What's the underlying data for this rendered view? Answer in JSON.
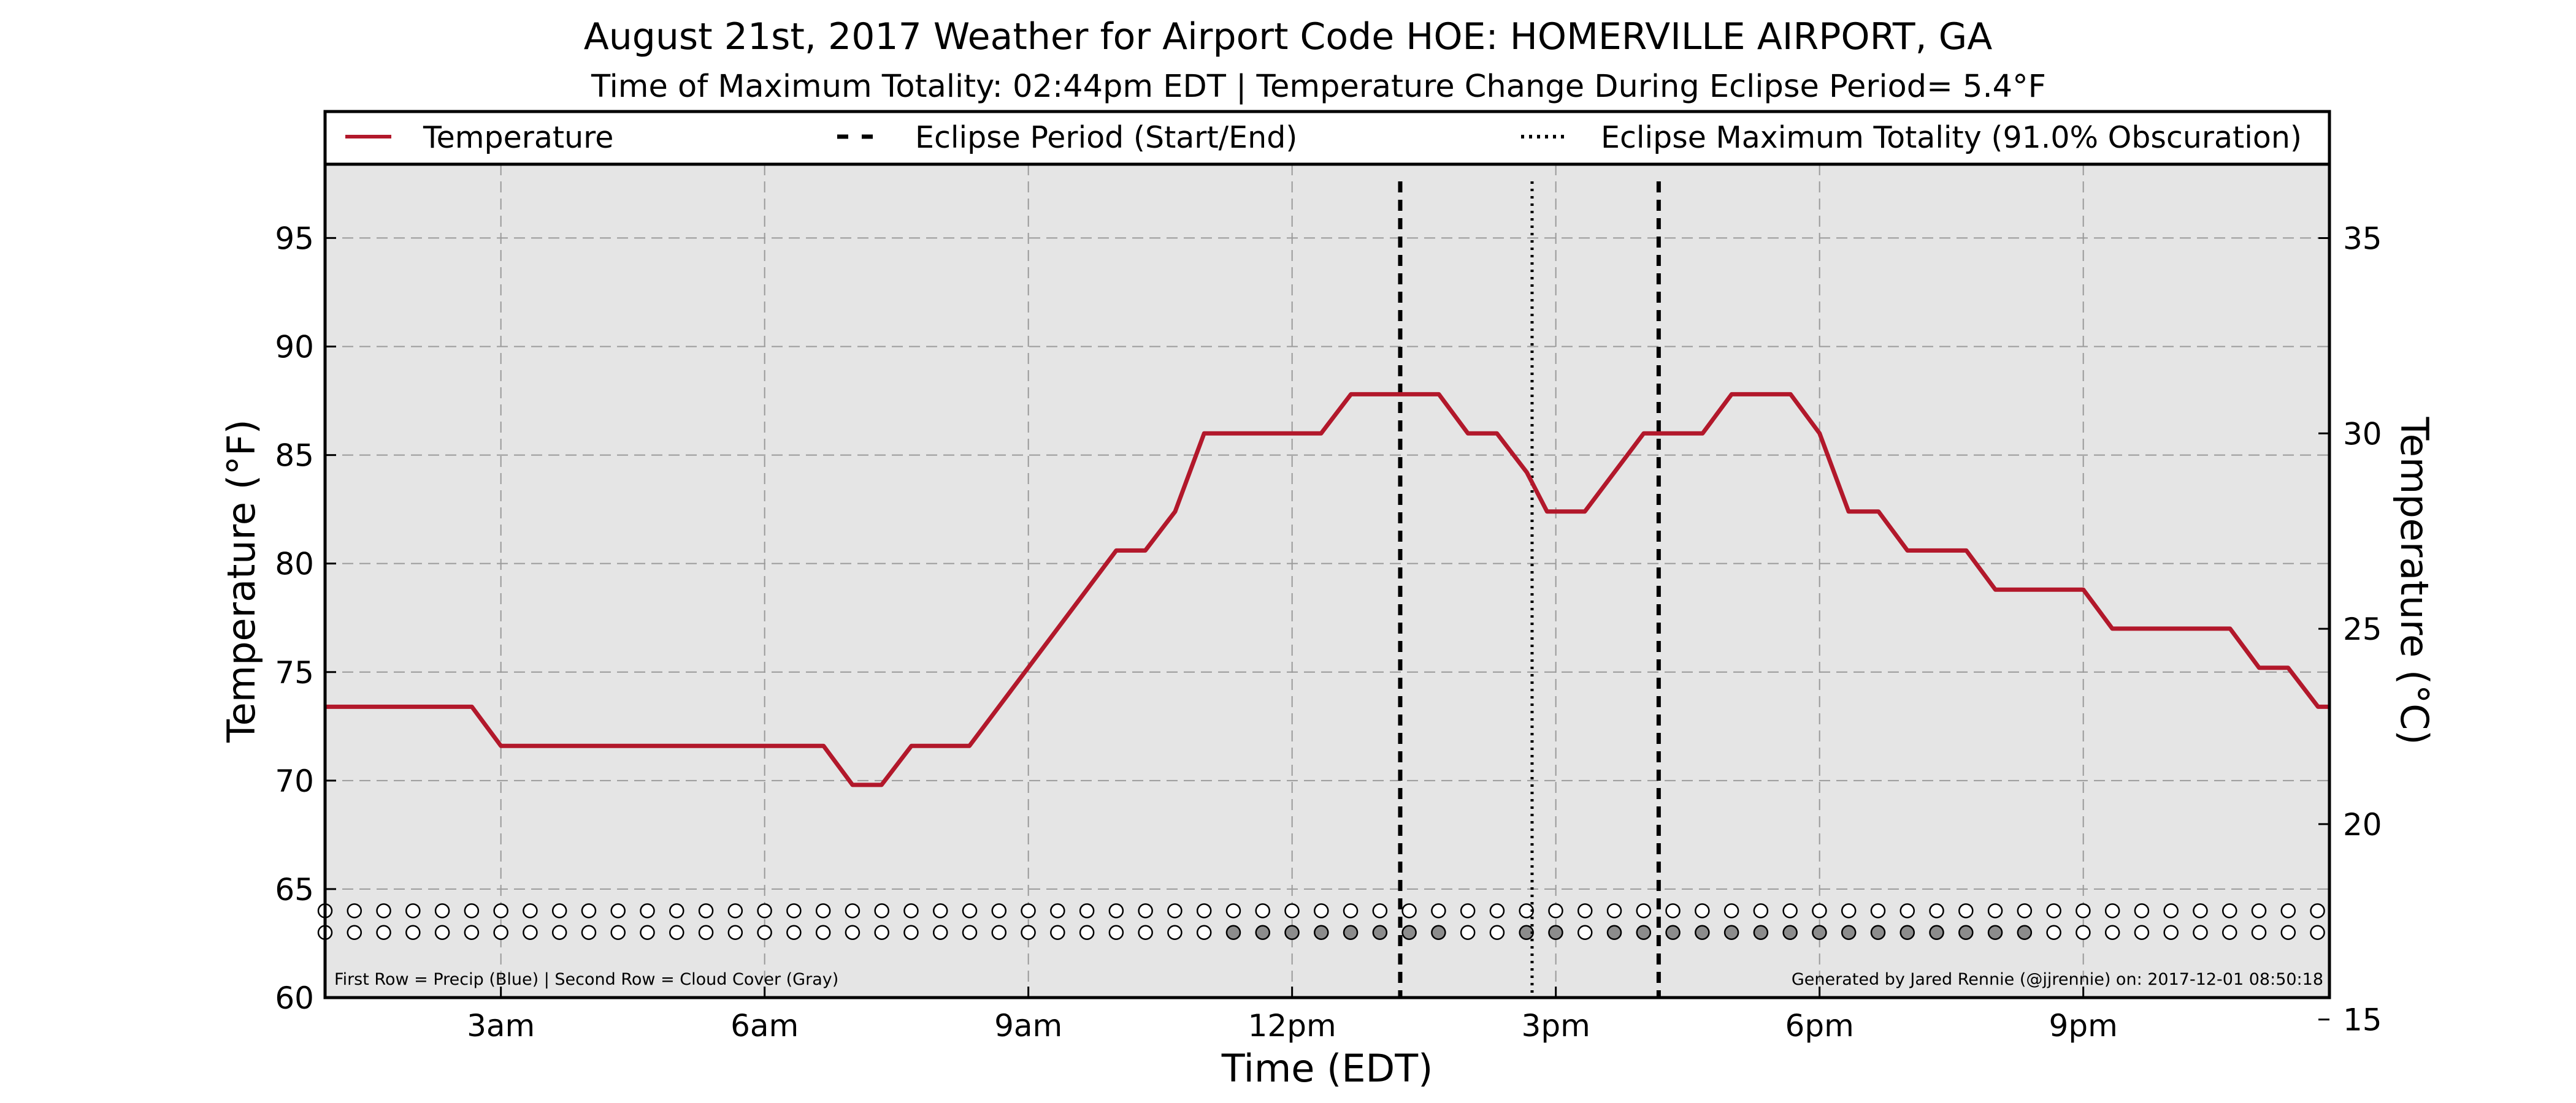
{
  "chart_data": {
    "type": "line",
    "title": "August 21st, 2017 Weather for Airport Code HOE: HOMERVILLE AIRPORT, GA",
    "subtitle": "Time of Maximum Totality: 02:44pm EDT | Temperature Change During Eclipse Period= 5.4°F",
    "xlabel": "Time (EDT)",
    "ylabel": "Temperature (°F)",
    "y2label": "Temperature (°C)",
    "xlim": [
      1.0,
      23.8
    ],
    "ylim": [
      60,
      98.4
    ],
    "y2lim": [
      15.56,
      36.89
    ],
    "x_ticks": [
      {
        "x": 3,
        "label": "3am"
      },
      {
        "x": 6,
        "label": "6am"
      },
      {
        "x": 9,
        "label": "9am"
      },
      {
        "x": 12,
        "label": "12pm"
      },
      {
        "x": 15,
        "label": "3pm"
      },
      {
        "x": 18,
        "label": "6pm"
      },
      {
        "x": 21,
        "label": "9pm"
      }
    ],
    "y_ticks": [
      60,
      65,
      70,
      75,
      80,
      85,
      90,
      95
    ],
    "y2_ticks": [
      15,
      20,
      25,
      30,
      35
    ],
    "grid": true,
    "legend": {
      "placement": "top",
      "entries": [
        {
          "label": "Temperature",
          "style": "solid",
          "color": "#b2182b"
        },
        {
          "label": "Eclipse Period (Start/End)",
          "style": "dashed",
          "color": "#000000"
        },
        {
          "label": "Eclipse Maximum Totality (91.0% Obscuration)",
          "style": "dotted",
          "color": "#000000"
        }
      ]
    },
    "series": [
      {
        "name": "Temperature",
        "color": "#b2182b",
        "x": [
          1.0,
          2.67,
          3.0,
          6.67,
          7.0,
          7.33,
          7.67,
          8.33,
          10.0,
          10.33,
          10.67,
          11.0,
          12.33,
          12.67,
          13.67,
          14.0,
          14.33,
          14.67,
          14.9,
          15.33,
          16.0,
          16.67,
          17.0,
          17.67,
          18.0,
          18.33,
          18.67,
          19.0,
          19.67,
          20.0,
          21.0,
          21.33,
          22.67,
          23.0,
          23.33,
          23.67,
          24.0
        ],
        "values": [
          73.4,
          73.4,
          71.6,
          71.6,
          69.8,
          69.8,
          71.6,
          71.6,
          80.6,
          80.6,
          82.4,
          86.0,
          86.0,
          87.8,
          87.8,
          86.0,
          86.0,
          84.2,
          82.4,
          82.4,
          86.0,
          86.0,
          87.8,
          87.8,
          86.0,
          82.4,
          82.4,
          80.6,
          80.6,
          78.8,
          78.8,
          77.0,
          77.0,
          75.2,
          75.2,
          73.4,
          73.4
        ]
      }
    ],
    "eclipse_start": 13.23,
    "eclipse_end": 16.17,
    "max_totality": 14.73,
    "precip_row": {
      "y": 64.0,
      "x_start": 1.0,
      "x_step": 0.3333,
      "count": 69,
      "filled": []
    },
    "cloud_row": {
      "y": 63.0,
      "x_start": 1.0,
      "x_step": 0.3333,
      "count": 69,
      "filled": [
        31,
        32,
        33,
        34,
        35,
        36,
        37,
        38,
        41,
        42,
        44,
        45,
        46,
        47,
        48,
        49,
        50,
        51,
        52,
        53,
        54,
        55,
        56,
        57,
        58
      ]
    },
    "footnote_left": "First Row = Precip (Blue) | Second Row = Cloud Cover (Gray)",
    "footnote_right": "Generated by Jared Rennie (@jjrennie) on: 2017-12-01 08:50:18"
  }
}
